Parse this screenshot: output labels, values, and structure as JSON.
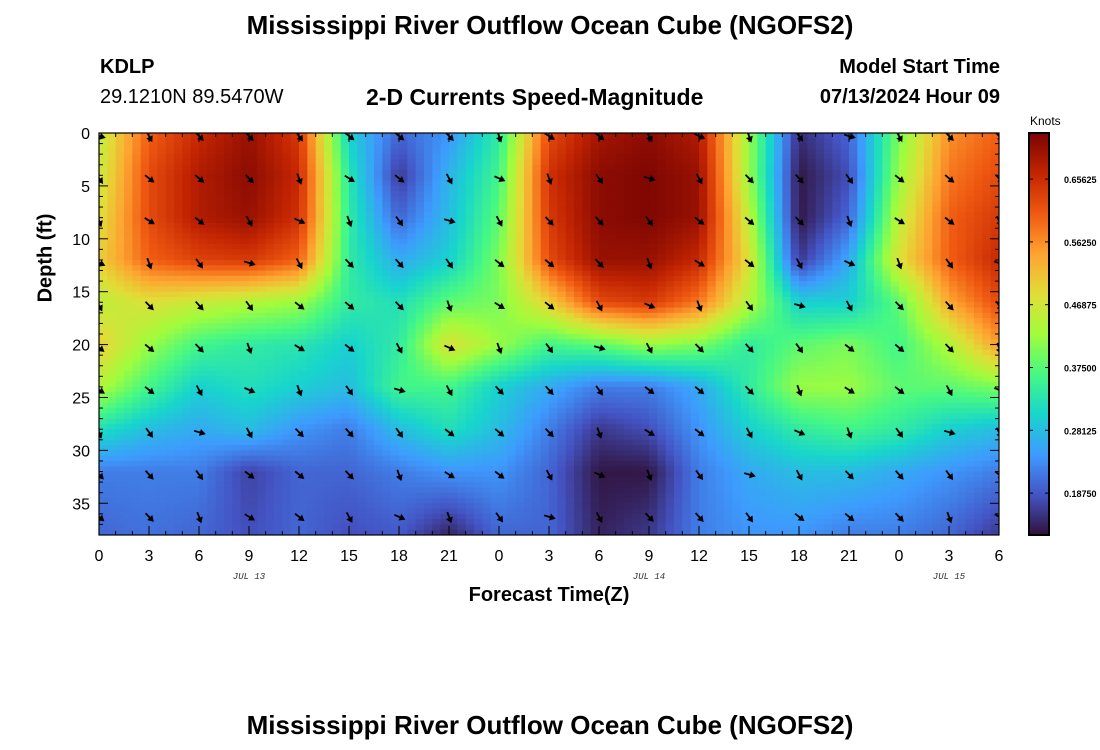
{
  "header": {
    "title": "Mississippi River Outflow Ocean Cube (NGOFS2)",
    "station": "KDLP",
    "coordinates": "29.1210N  89.5470W",
    "subtitle": "2-D Currents Speed-Magnitude",
    "model_start_label": "Model Start Time",
    "model_start_value": "07/13/2024 Hour 09"
  },
  "footer": {
    "title": "Mississippi River Outflow Ocean Cube (NGOFS2)"
  },
  "chart_data": {
    "type": "heatmap",
    "title": "2-D Currents Speed-Magnitude",
    "xlabel": "Forecast Time(Z)",
    "ylabel": "Depth (ft)",
    "x_tick_labels": [
      "0",
      "3",
      "6",
      "9",
      "12",
      "15",
      "18",
      "21",
      "0",
      "3",
      "6",
      "9",
      "12",
      "15",
      "18",
      "21",
      "0",
      "3",
      "6"
    ],
    "x_range_hours": [
      0,
      54
    ],
    "date_labels": [
      {
        "text": "JUL 13",
        "hour": 9
      },
      {
        "text": "JUL 14",
        "hour": 33
      },
      {
        "text": "JUL 15",
        "hour": 51
      }
    ],
    "y_ticks": [
      0,
      5,
      10,
      15,
      20,
      25,
      30,
      35
    ],
    "ylim": [
      0,
      38
    ],
    "y_inverted": true,
    "colorbar": {
      "label": "Knots",
      "tick_labels": [
        "0.65625",
        "0.56250",
        "0.46875",
        "0.37500",
        "0.28125",
        "0.18750"
      ],
      "range": [
        0.125,
        0.725
      ],
      "colormap": [
        "#30123b",
        "#4454c4",
        "#3e9bfe",
        "#18d5cc",
        "#46f884",
        "#a2fc3c",
        "#e1dd37",
        "#fea331",
        "#ef5911",
        "#c22402",
        "#7a0403"
      ]
    },
    "arrow_depths_ft": [
      0,
      4,
      8,
      12,
      16,
      20,
      24,
      28,
      32,
      36
    ],
    "arrow_times_h": [
      0,
      3,
      6,
      9,
      12,
      15,
      18,
      21,
      24,
      27,
      30,
      33,
      36,
      39,
      42,
      45,
      48,
      51,
      54
    ],
    "speed_rows_depth_ft": [
      0,
      4,
      8,
      12,
      16,
      20,
      24,
      28,
      32,
      38
    ],
    "speed_cols_hours": [
      0,
      3,
      6,
      9,
      12,
      15,
      18,
      21,
      24,
      27,
      30,
      33,
      36,
      39,
      42,
      45,
      48,
      51,
      54
    ],
    "speed_grid_knots": [
      [
        0.45,
        0.6,
        0.66,
        0.7,
        0.64,
        0.3,
        0.2,
        0.24,
        0.34,
        0.62,
        0.69,
        0.71,
        0.68,
        0.42,
        0.15,
        0.2,
        0.4,
        0.56,
        0.6
      ],
      [
        0.46,
        0.62,
        0.68,
        0.71,
        0.66,
        0.33,
        0.16,
        0.27,
        0.36,
        0.65,
        0.71,
        0.72,
        0.7,
        0.42,
        0.13,
        0.18,
        0.42,
        0.58,
        0.62
      ],
      [
        0.48,
        0.62,
        0.68,
        0.7,
        0.65,
        0.34,
        0.2,
        0.28,
        0.38,
        0.64,
        0.71,
        0.72,
        0.7,
        0.45,
        0.13,
        0.2,
        0.45,
        0.6,
        0.64
      ],
      [
        0.5,
        0.6,
        0.63,
        0.64,
        0.6,
        0.34,
        0.26,
        0.3,
        0.4,
        0.62,
        0.7,
        0.7,
        0.66,
        0.48,
        0.16,
        0.26,
        0.48,
        0.6,
        0.66
      ],
      [
        0.45,
        0.48,
        0.46,
        0.44,
        0.42,
        0.34,
        0.32,
        0.38,
        0.4,
        0.5,
        0.62,
        0.64,
        0.58,
        0.44,
        0.3,
        0.3,
        0.38,
        0.54,
        0.62
      ],
      [
        0.5,
        0.42,
        0.36,
        0.34,
        0.33,
        0.3,
        0.34,
        0.48,
        0.42,
        0.36,
        0.38,
        0.42,
        0.4,
        0.34,
        0.38,
        0.4,
        0.36,
        0.44,
        0.55
      ],
      [
        0.44,
        0.36,
        0.3,
        0.32,
        0.3,
        0.28,
        0.36,
        0.36,
        0.3,
        0.26,
        0.22,
        0.22,
        0.26,
        0.34,
        0.42,
        0.42,
        0.38,
        0.38,
        0.4
      ],
      [
        0.32,
        0.28,
        0.26,
        0.28,
        0.24,
        0.22,
        0.28,
        0.32,
        0.28,
        0.22,
        0.16,
        0.18,
        0.24,
        0.3,
        0.34,
        0.36,
        0.34,
        0.3,
        0.28
      ],
      [
        0.22,
        0.22,
        0.22,
        0.17,
        0.2,
        0.2,
        0.22,
        0.24,
        0.24,
        0.2,
        0.13,
        0.13,
        0.22,
        0.26,
        0.28,
        0.28,
        0.26,
        0.24,
        0.22
      ],
      [
        0.2,
        0.21,
        0.2,
        0.18,
        0.2,
        0.18,
        0.19,
        0.14,
        0.2,
        0.2,
        0.14,
        0.16,
        0.22,
        0.24,
        0.24,
        0.22,
        0.22,
        0.2,
        0.16
      ]
    ]
  }
}
